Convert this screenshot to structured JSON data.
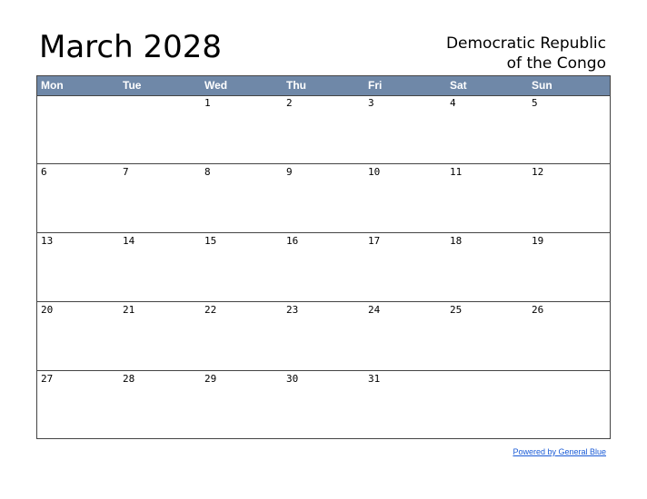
{
  "header": {
    "title": "March 2028",
    "country_line1": "Democratic Republic",
    "country_line2": "of the Congo"
  },
  "weekdays": [
    "Mon",
    "Tue",
    "Wed",
    "Thu",
    "Fri",
    "Sat",
    "Sun"
  ],
  "weeks": [
    [
      "",
      "",
      "1",
      "2",
      "3",
      "4",
      "5"
    ],
    [
      "6",
      "7",
      "8",
      "9",
      "10",
      "11",
      "12"
    ],
    [
      "13",
      "14",
      "15",
      "16",
      "17",
      "18",
      "19"
    ],
    [
      "20",
      "21",
      "22",
      "23",
      "24",
      "25",
      "26"
    ],
    [
      "27",
      "28",
      "29",
      "30",
      "31",
      "",
      ""
    ]
  ],
  "footer": {
    "link_text": "Powered by General Blue"
  },
  "colors": {
    "header_bg": "#6f88a8",
    "link": "#1a5bd6"
  }
}
